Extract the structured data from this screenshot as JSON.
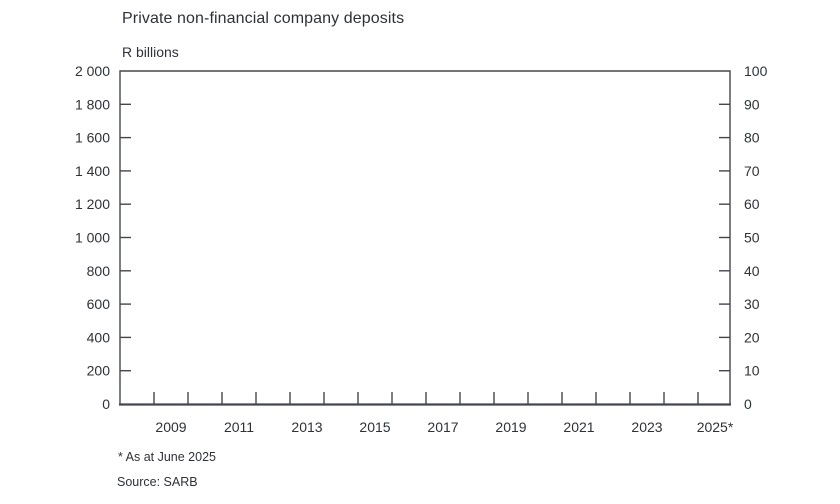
{
  "colors": {
    "text": "#2e3237",
    "axis": "#43474d",
    "background": "#ffffff"
  },
  "chart_data": {
    "type": "line",
    "title": "Private non-financial company deposits",
    "unit_label": "R billions",
    "footnote": "* As at June 2025",
    "source": "Source: SARB",
    "series": [],
    "left_axis": {
      "min": 0,
      "max": 2000,
      "step": 200,
      "tick_labels": [
        "2 000",
        "1 800",
        "1 600",
        "1 400",
        "1 200",
        "1 000",
        "800",
        "600",
        "400",
        "200",
        "0"
      ]
    },
    "right_axis": {
      "min": 0,
      "max": 100,
      "step": 10,
      "tick_labels": [
        "100",
        "90",
        "80",
        "70",
        "60",
        "50",
        "40",
        "30",
        "20",
        "10",
        "0"
      ]
    },
    "x_axis": {
      "first_tick_year": 2009,
      "last_tick_year": 2025,
      "labels": [
        {
          "year": 2009,
          "text": "2009"
        },
        {
          "year": 2011,
          "text": "2011"
        },
        {
          "year": 2013,
          "text": "2013"
        },
        {
          "year": 2015,
          "text": "2015"
        },
        {
          "year": 2017,
          "text": "2017"
        },
        {
          "year": 2019,
          "text": "2019"
        },
        {
          "year": 2021,
          "text": "2021"
        },
        {
          "year": 2023,
          "text": "2023"
        },
        {
          "year": 2025,
          "text": "2025*"
        }
      ]
    }
  }
}
